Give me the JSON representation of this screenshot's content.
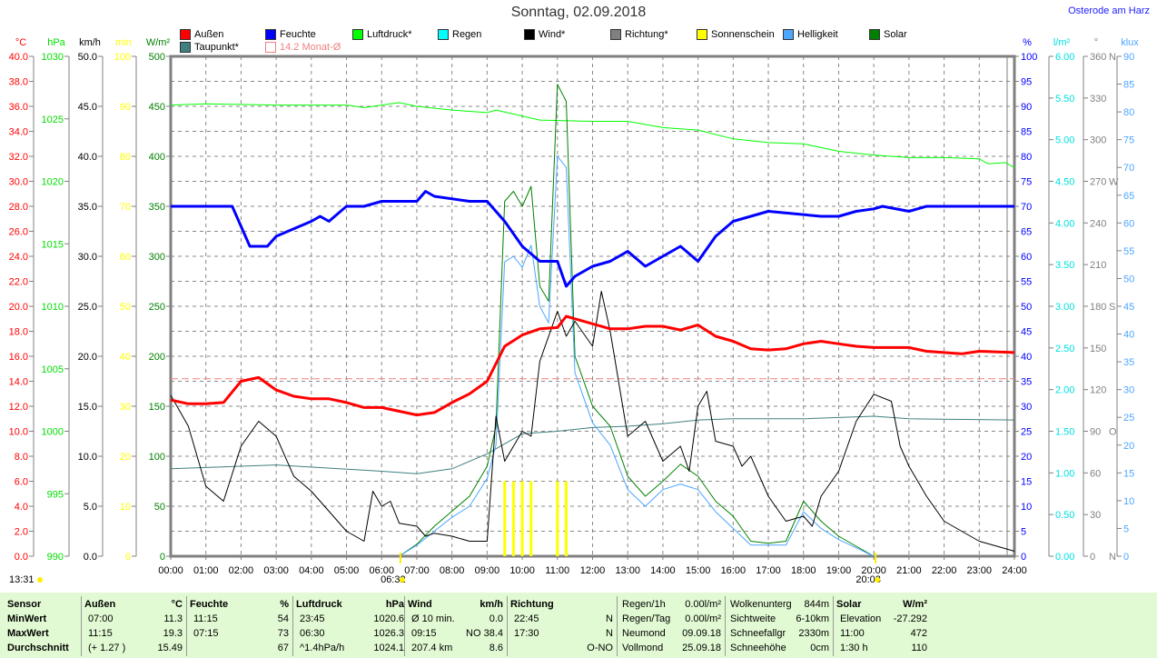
{
  "header": {
    "title": "Sonntag, 02.09.2018",
    "location": "Osterode am Harz"
  },
  "legend": [
    {
      "label": "Außen",
      "color": "#ff0000"
    },
    {
      "label": "Feuchte",
      "color": "#0000ff"
    },
    {
      "label": "Luftdruck*",
      "color": "#00ff00"
    },
    {
      "label": "Regen",
      "color": "#00ffff"
    },
    {
      "label": "Wind*",
      "color": "#000000"
    },
    {
      "label": "Richtung*",
      "color": "#808080"
    },
    {
      "label": "Sonnenschein",
      "color": "#ffff00"
    },
    {
      "label": "Helligkeit",
      "color": "#4da6ff"
    },
    {
      "label": "Solar",
      "color": "#008000"
    },
    {
      "label": "Taupunkt*",
      "color": "#408080"
    },
    {
      "label": "14.2 Monat-Ø",
      "color": "#f08080"
    }
  ],
  "chart_data": {
    "type": "line",
    "title": "Sonntag, 02.09.2018",
    "x_range": [
      "00:00",
      "24:00"
    ],
    "x_ticks": [
      "00:00",
      "01:00",
      "02:00",
      "03:00",
      "04:00",
      "05:00",
      "06:00",
      "07:00",
      "08:00",
      "09:00",
      "10:00",
      "11:00",
      "12:00",
      "13:00",
      "14:00",
      "15:00",
      "16:00",
      "17:00",
      "18:00",
      "19:00",
      "20:00",
      "21:00",
      "22:00",
      "23:00",
      "24:00"
    ],
    "axes": [
      {
        "id": "temp",
        "unit": "°C",
        "color": "#ff0000",
        "min": 0,
        "max": 40,
        "step": 2,
        "decimals": 1,
        "side": "left"
      },
      {
        "id": "press",
        "unit": "hPa",
        "color": "#00dd00",
        "min": 990,
        "max": 1030,
        "step": 5,
        "decimals": 0,
        "side": "left"
      },
      {
        "id": "wind",
        "unit": "km/h",
        "color": "#000000",
        "min": 0,
        "max": 50,
        "step": 5,
        "decimals": 1,
        "side": "left"
      },
      {
        "id": "sun",
        "unit": "min",
        "color": "#ffff00",
        "min": 0,
        "max": 100,
        "step": 10,
        "decimals": 0,
        "side": "left"
      },
      {
        "id": "solar",
        "unit": "W/m²",
        "color": "#008000",
        "min": 0,
        "max": 500,
        "step": 50,
        "decimals": 0,
        "side": "left"
      },
      {
        "id": "hum",
        "unit": "%",
        "color": "#0000ff",
        "min": 0,
        "max": 100,
        "step": 5,
        "decimals": 0,
        "side": "right"
      },
      {
        "id": "rain",
        "unit": "l/m²",
        "color": "#00e0e0",
        "min": 0,
        "max": 6,
        "step": 0.5,
        "decimals": 2,
        "side": "right"
      },
      {
        "id": "dir",
        "unit": "°",
        "color": "#808080",
        "min": 0,
        "max": 360,
        "step": 30,
        "decimals": 0,
        "side": "right",
        "compass": {
          "0": "N",
          "90": "O",
          "180": "S",
          "270": "W",
          "360": "N"
        }
      },
      {
        "id": "lux",
        "unit": "klux",
        "color": "#4da6ff",
        "min": 0,
        "max": 90,
        "step": 5,
        "decimals": 0,
        "side": "right"
      }
    ],
    "month_avg_temp": 14.2,
    "series": [
      {
        "name": "Taupunkt*",
        "axis": "temp",
        "color": "#408080",
        "width": 1,
        "x": [
          "00:00",
          "03:00",
          "06:00",
          "07:00",
          "08:00",
          "09:00",
          "10:00",
          "11:00",
          "12:00",
          "13:00",
          "14:00",
          "15:00",
          "16:00",
          "17:00",
          "18:00",
          "19:00",
          "20:00",
          "21:00",
          "24:00"
        ],
        "y": [
          7.0,
          7.3,
          6.8,
          6.6,
          7.0,
          8.2,
          9.8,
          10.0,
          10.3,
          10.4,
          10.6,
          10.9,
          11.0,
          11.0,
          11.0,
          11.1,
          11.2,
          11.0,
          10.9
        ]
      },
      {
        "name": "Luftdruck*",
        "axis": "press",
        "color": "#00ff00",
        "width": 1,
        "x": [
          "00:00",
          "01:00",
          "03:00",
          "05:00",
          "05:30",
          "06:30",
          "07:00",
          "08:00",
          "09:00",
          "09:15",
          "10:30",
          "12:00",
          "13:00",
          "14:00",
          "15:00",
          "16:00",
          "17:00",
          "18:00",
          "19:00",
          "20:00",
          "21:00",
          "22:00",
          "23:00",
          "23:15",
          "23:45",
          "24:00"
        ],
        "y": [
          1026.1,
          1026.2,
          1026.1,
          1026.1,
          1025.9,
          1026.3,
          1026.0,
          1025.7,
          1025.5,
          1025.7,
          1024.9,
          1024.8,
          1024.8,
          1024.3,
          1024.1,
          1023.4,
          1023.1,
          1023.0,
          1022.4,
          1022.1,
          1021.9,
          1021.9,
          1021.8,
          1021.4,
          1021.5,
          1021.1
        ]
      },
      {
        "name": "Solar",
        "axis": "solar",
        "color": "#008000",
        "width": 1,
        "x": [
          "06:30",
          "07:00",
          "07:30",
          "08:00",
          "08:30",
          "09:00",
          "09:15",
          "09:30",
          "09:45",
          "10:00",
          "10:15",
          "10:30",
          "10:45",
          "11:00",
          "11:15",
          "11:30",
          "12:00",
          "12:30",
          "13:00",
          "13:30",
          "14:00",
          "14:30",
          "15:00",
          "15:30",
          "16:00",
          "16:30",
          "17:00",
          "17:30",
          "18:00",
          "18:30",
          "19:00",
          "19:30",
          "20:00"
        ],
        "y": [
          0,
          12,
          30,
          45,
          60,
          90,
          130,
          355,
          365,
          350,
          370,
          270,
          255,
          472,
          455,
          200,
          150,
          130,
          80,
          60,
          75,
          92,
          80,
          55,
          40,
          15,
          13,
          15,
          55,
          35,
          20,
          10,
          0
        ]
      },
      {
        "name": "Helligkeit",
        "axis": "lux",
        "color": "#4da6ff",
        "width": 1,
        "x": [
          "06:30",
          "07:00",
          "07:30",
          "08:00",
          "08:30",
          "09:00",
          "09:15",
          "09:30",
          "09:45",
          "10:00",
          "10:15",
          "10:30",
          "10:45",
          "11:00",
          "11:15",
          "11:30",
          "12:00",
          "12:30",
          "13:00",
          "13:30",
          "14:00",
          "14:30",
          "15:00",
          "15:30",
          "16:00",
          "16:30",
          "17:00",
          "17:30",
          "18:00",
          "18:30",
          "19:00",
          "19:30",
          "20:00"
        ],
        "y": [
          0,
          2,
          4.5,
          7,
          9,
          14,
          20,
          53,
          54,
          52,
          56,
          45,
          42,
          72,
          70,
          33,
          24,
          20,
          12,
          9,
          12,
          13,
          12,
          8,
          5,
          2,
          2,
          2,
          8,
          5,
          3,
          1.5,
          0
        ]
      },
      {
        "name": "Wind*",
        "axis": "wind",
        "color": "#000000",
        "width": 1,
        "x": [
          "00:00",
          "00:30",
          "01:00",
          "01:30",
          "02:00",
          "02:30",
          "03:00",
          "03:30",
          "04:00",
          "04:30",
          "05:00",
          "05:30",
          "05:45",
          "06:00",
          "06:15",
          "06:30",
          "07:00",
          "07:15",
          "07:30",
          "08:00",
          "08:30",
          "09:00",
          "09:15",
          "09:30",
          "10:00",
          "10:15",
          "10:30",
          "11:00",
          "11:15",
          "11:30",
          "12:00",
          "12:15",
          "12:30",
          "13:00",
          "13:30",
          "14:00",
          "14:30",
          "14:45",
          "15:00",
          "15:15",
          "15:30",
          "16:00",
          "16:15",
          "16:30",
          "17:00",
          "17:30",
          "18:00",
          "18:15",
          "18:30",
          "19:00",
          "19:30",
          "20:00",
          "20:30",
          "20:45",
          "21:00",
          "21:30",
          "22:00",
          "23:00",
          "24:00"
        ],
        "y": [
          16.1,
          13,
          7,
          5.5,
          11,
          13.5,
          12,
          8,
          6.5,
          4.5,
          2.5,
          1.5,
          6.5,
          5,
          5.5,
          3.3,
          3,
          2,
          2.3,
          2,
          1.5,
          1.5,
          14,
          9.5,
          12.5,
          12,
          19.5,
          24.5,
          22,
          23.5,
          21,
          26.5,
          22.5,
          12,
          13.5,
          9.5,
          11,
          8.5,
          15,
          16.5,
          11.5,
          11,
          9,
          10,
          6,
          3.5,
          4,
          3,
          6,
          8.5,
          13.5,
          16.2,
          15.5,
          11,
          9,
          6,
          3.5,
          1.5,
          0.5
        ]
      },
      {
        "name": "Außen",
        "axis": "temp",
        "color": "#ff0000",
        "width": 3,
        "x": [
          "00:00",
          "00:30",
          "01:00",
          "01:30",
          "02:00",
          "02:30",
          "03:00",
          "03:30",
          "04:00",
          "04:30",
          "05:00",
          "05:30",
          "06:00",
          "06:30",
          "07:00",
          "07:30",
          "08:00",
          "08:30",
          "09:00",
          "09:30",
          "10:00",
          "10:30",
          "11:00",
          "11:15",
          "11:30",
          "12:00",
          "12:30",
          "13:00",
          "13:30",
          "14:00",
          "14:30",
          "15:00",
          "15:30",
          "16:00",
          "16:30",
          "17:00",
          "17:30",
          "18:00",
          "18:30",
          "19:00",
          "19:30",
          "20:00",
          "21:00",
          "21:30",
          "22:00",
          "22:30",
          "23:00",
          "24:00"
        ],
        "y": [
          12.5,
          12.2,
          12.2,
          12.3,
          14.0,
          14.3,
          13.3,
          12.8,
          12.6,
          12.6,
          12.3,
          11.9,
          11.9,
          11.6,
          11.3,
          11.5,
          12.3,
          13.0,
          14.0,
          16.8,
          17.7,
          18.2,
          18.3,
          19.2,
          19.0,
          18.6,
          18.2,
          18.2,
          18.4,
          18.4,
          18.1,
          18.5,
          17.6,
          17.2,
          16.6,
          16.5,
          16.6,
          17.0,
          17.2,
          17.0,
          16.8,
          16.7,
          16.7,
          16.4,
          16.3,
          16.2,
          16.4,
          16.3
        ]
      },
      {
        "name": "Feuchte",
        "axis": "hum",
        "color": "#0000ff",
        "width": 3,
        "x": [
          "00:00",
          "01:45",
          "02:15",
          "02:45",
          "03:00",
          "04:00",
          "04:15",
          "04:30",
          "05:00",
          "05:30",
          "06:00",
          "07:00",
          "07:15",
          "07:30",
          "08:30",
          "09:00",
          "09:30",
          "10:00",
          "10:30",
          "11:00",
          "11:15",
          "11:30",
          "12:00",
          "12:30",
          "13:00",
          "13:30",
          "14:00",
          "14:30",
          "15:00",
          "15:30",
          "16:00",
          "16:30",
          "17:00",
          "18:30",
          "19:00",
          "19:30",
          "20:00",
          "20:15",
          "21:00",
          "21:30",
          "24:00"
        ],
        "y": [
          70,
          70,
          62,
          62,
          64,
          67,
          68,
          67,
          70,
          70,
          71,
          71,
          73,
          72,
          71,
          71,
          67,
          62,
          59,
          59,
          54,
          56,
          58,
          59,
          61,
          58,
          60,
          62,
          59,
          64,
          67,
          68,
          69,
          68,
          68,
          69,
          69.5,
          70,
          69,
          70,
          70
        ]
      }
    ],
    "sunshine_bars": {
      "axis": "sun",
      "color": "#ffff00",
      "x": [
        "09:30",
        "09:45",
        "10:00",
        "10:15",
        "11:00",
        "11:15"
      ],
      "y": [
        15,
        15,
        15,
        15,
        15,
        15
      ]
    },
    "daylight": {
      "length": "13:31",
      "sunrise": "06:32",
      "sunset": "20:03"
    }
  },
  "table": {
    "columns": [
      {
        "header": "Sensor",
        "unit": "",
        "rows": [
          [
            "MinWert",
            ""
          ],
          [
            "MaxWert",
            ""
          ],
          [
            "Durchschnitt",
            ""
          ]
        ]
      },
      {
        "header": "Außen",
        "unit": "°C",
        "rows": [
          [
            "07:00",
            "11.3"
          ],
          [
            "11:15",
            "19.3"
          ],
          [
            "(+ 1.27 )",
            "15.49"
          ]
        ]
      },
      {
        "header": "Feuchte",
        "unit": "%",
        "rows": [
          [
            "11:15",
            "54"
          ],
          [
            "07:15",
            "73"
          ],
          [
            "",
            "67"
          ]
        ]
      },
      {
        "header": "Luftdruck",
        "unit": "hPa",
        "rows": [
          [
            "23:45",
            "1020.6"
          ],
          [
            "06:30",
            "1026.3"
          ],
          [
            "^1.4hPa/h",
            "1024.1"
          ]
        ]
      },
      {
        "header": "Wind",
        "unit": "km/h",
        "rows": [
          [
            "Ø 10 min.",
            "0.0"
          ],
          [
            "09:15",
            "NO 38.4"
          ],
          [
            "207.4 km",
            "8.6"
          ]
        ]
      },
      {
        "header": "Richtung",
        "unit": "",
        "rows": [
          [
            "22:45",
            "N"
          ],
          [
            "17:30",
            "N"
          ],
          [
            "",
            "O-NO"
          ]
        ]
      },
      {
        "header": "",
        "unit": "",
        "rows4": [
          [
            "Regen/1h",
            "0.00l/m²"
          ],
          [
            "Regen/Tag",
            "0.00l/m²"
          ],
          [
            "Neumond",
            "09.09.18"
          ],
          [
            "Vollmond",
            "25.09.18"
          ]
        ]
      },
      {
        "header": "",
        "unit": "",
        "rows4": [
          [
            "Wolkenunterg",
            "844m"
          ],
          [
            "Sichtweite",
            "6-10km"
          ],
          [
            "Schneefallgr",
            "2330m"
          ],
          [
            "Schneehöhe",
            "0cm"
          ]
        ]
      },
      {
        "header": "Solar",
        "unit": "W/m²",
        "rows": [
          [
            "Elevation",
            "-27.292"
          ],
          [
            "11:00",
            "472"
          ],
          [
            "1:30 h",
            "110"
          ]
        ]
      }
    ]
  }
}
